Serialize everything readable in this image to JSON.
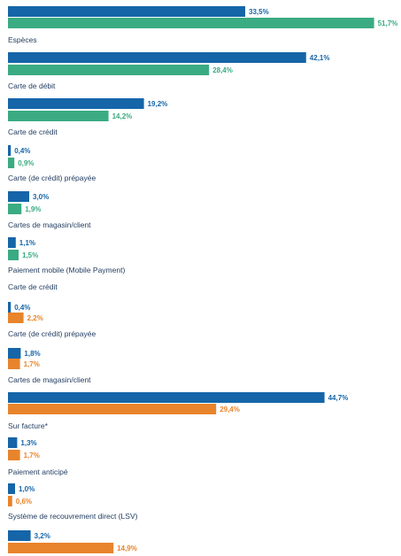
{
  "colors": {
    "primary": "#1565a8",
    "secondary_green": "#3aab82",
    "secondary_orange": "#e8842b",
    "label_text": "#1f3a5f"
  },
  "chart_data": {
    "type": "bar",
    "orientation": "horizontal",
    "value_format": "percent_comma_decimal",
    "groups": [
      {
        "label": "Espèces",
        "primary": 33.5,
        "secondary": 51.7,
        "secondary_color": "green",
        "primary_label": "33,5%",
        "secondary_label": "51,7%"
      },
      {
        "label": "Carte de débit",
        "primary": 42.1,
        "secondary": 28.4,
        "secondary_color": "green",
        "primary_label": "42,1%",
        "secondary_label": "28,4%"
      },
      {
        "label": "Carte de crédit",
        "primary": 19.2,
        "secondary": 14.2,
        "secondary_color": "green",
        "primary_label": "19,2%",
        "secondary_label": "14,2%"
      },
      {
        "label": "Carte (de crédit) prépayée",
        "primary": 0.4,
        "secondary": 0.9,
        "secondary_color": "green",
        "primary_label": "0,4%",
        "secondary_label": "0,9%"
      },
      {
        "label": "Cartes de magasin/client",
        "primary": 3.0,
        "secondary": 1.9,
        "secondary_color": "green",
        "primary_label": "3,0%",
        "secondary_label": "1,9%"
      },
      {
        "label": "Paiement mobile (Mobile Payment)",
        "primary": 1.1,
        "secondary": 1.5,
        "secondary_color": "green",
        "primary_label": "1,1%",
        "secondary_label": "1,5%"
      },
      {
        "label": "Carte de crédit",
        "primary": null,
        "secondary": null,
        "secondary_color": "orange",
        "primary_label": "",
        "secondary_label": ""
      },
      {
        "label": "Carte (de crédit) prépayée",
        "primary": 0.4,
        "secondary": 2.2,
        "secondary_color": "orange",
        "primary_label": "0,4%",
        "secondary_label": "2,2%"
      },
      {
        "label": "Cartes de magasin/client",
        "primary": 1.8,
        "secondary": 1.7,
        "secondary_color": "orange",
        "primary_label": "1,8%",
        "secondary_label": "1,7%"
      },
      {
        "label": "Sur facture*",
        "primary": 44.7,
        "secondary": 29.4,
        "secondary_color": "orange",
        "primary_label": "44,7%",
        "secondary_label": "29,4%"
      },
      {
        "label": "Paiement anticipé",
        "primary": 1.3,
        "secondary": 1.7,
        "secondary_color": "orange",
        "primary_label": "1,3%",
        "secondary_label": "1,7%"
      },
      {
        "label": "Système de recouvrement direct (LSV)",
        "primary": 1.0,
        "secondary": 0.6,
        "secondary_color": "orange",
        "primary_label": "1,0%",
        "secondary_label": "0,6%"
      },
      {
        "label": "",
        "primary": 3.2,
        "secondary": 14.9,
        "secondary_color": "orange",
        "primary_label": "3,2%",
        "secondary_label": "14,9%"
      }
    ],
    "title": "",
    "xlabel": "",
    "ylabel": "",
    "xlim": [
      0,
      52
    ],
    "grid": false,
    "legend": "none"
  }
}
